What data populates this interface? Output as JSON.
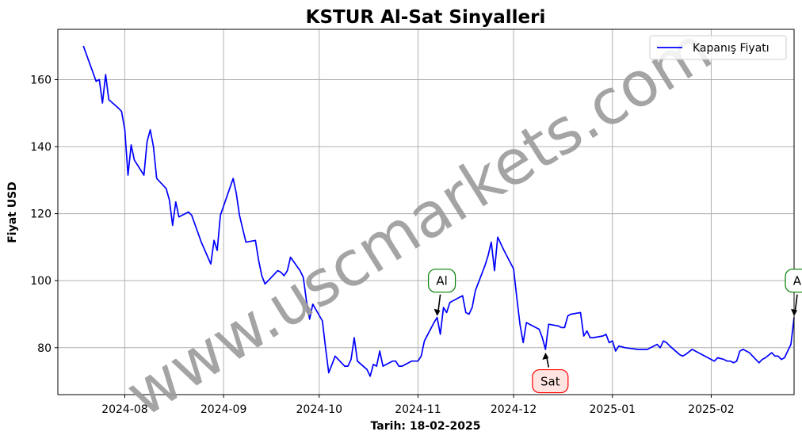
{
  "chart_data": {
    "type": "line",
    "title": "KSTUR Al-Sat Sinyalleri",
    "xlabel": "Tarih: 18-02-2025",
    "ylabel": "Fiyat USD",
    "xlim": [
      "2024-07-11",
      "2025-02-27"
    ],
    "ylim": [
      66,
      175
    ],
    "grid": true,
    "legend_position": "top-right",
    "x_ticks": [
      "2024-08",
      "2024-09",
      "2024-10",
      "2024-11",
      "2024-12",
      "2025-01",
      "2025-02"
    ],
    "y_ticks": [
      80,
      100,
      120,
      140,
      160
    ],
    "series": [
      {
        "name": "Kapanış Fiyatı",
        "color": "#0000ff",
        "points": [
          [
            "2024-07-19",
            170
          ],
          [
            "2024-07-23",
            159.5
          ],
          [
            "2024-07-24",
            160
          ],
          [
            "2024-07-25",
            153
          ],
          [
            "2024-07-26",
            161.5
          ],
          [
            "2024-07-27",
            154
          ],
          [
            "2024-07-30",
            151.5
          ],
          [
            "2024-07-31",
            150.5
          ],
          [
            "2024-08-01",
            145
          ],
          [
            "2024-08-02",
            131.5
          ],
          [
            "2024-08-03",
            140.5
          ],
          [
            "2024-08-04",
            136
          ],
          [
            "2024-08-07",
            131.5
          ],
          [
            "2024-08-08",
            141.5
          ],
          [
            "2024-08-09",
            145
          ],
          [
            "2024-08-10",
            140
          ],
          [
            "2024-08-11",
            130.5
          ],
          [
            "2024-08-14",
            127.5
          ],
          [
            "2024-08-15",
            124
          ],
          [
            "2024-08-16",
            116.5
          ],
          [
            "2024-08-17",
            123.5
          ],
          [
            "2024-08-18",
            119
          ],
          [
            "2024-08-21",
            120.5
          ],
          [
            "2024-08-22",
            119.5
          ],
          [
            "2024-08-25",
            111.5
          ],
          [
            "2024-08-28",
            105
          ],
          [
            "2024-08-29",
            112
          ],
          [
            "2024-08-30",
            109
          ],
          [
            "2024-08-31",
            119.5
          ],
          [
            "2024-09-04",
            130.5
          ],
          [
            "2024-09-05",
            126
          ],
          [
            "2024-09-06",
            119.5
          ],
          [
            "2024-09-08",
            111.5
          ],
          [
            "2024-09-11",
            112
          ],
          [
            "2024-09-12",
            106
          ],
          [
            "2024-09-13",
            101.5
          ],
          [
            "2024-09-14",
            99
          ],
          [
            "2024-09-18",
            103
          ],
          [
            "2024-09-19",
            102.5
          ],
          [
            "2024-09-20",
            101.5
          ],
          [
            "2024-09-21",
            103
          ],
          [
            "2024-09-22",
            107
          ],
          [
            "2024-09-25",
            103
          ],
          [
            "2024-09-26",
            101
          ],
          [
            "2024-09-27",
            94
          ],
          [
            "2024-09-28",
            88.5
          ],
          [
            "2024-09-29",
            93
          ],
          [
            "2024-10-02",
            88
          ],
          [
            "2024-10-03",
            80
          ],
          [
            "2024-10-04",
            72.5
          ],
          [
            "2024-10-05",
            75
          ],
          [
            "2024-10-06",
            77.5
          ],
          [
            "2024-10-09",
            74.5
          ],
          [
            "2024-10-10",
            74.5
          ],
          [
            "2024-10-11",
            76.5
          ],
          [
            "2024-10-12",
            83
          ],
          [
            "2024-10-13",
            76
          ],
          [
            "2024-10-16",
            73.5
          ],
          [
            "2024-10-17",
            71.5
          ],
          [
            "2024-10-18",
            75
          ],
          [
            "2024-10-19",
            74.5
          ],
          [
            "2024-10-20",
            79
          ],
          [
            "2024-10-21",
            74.5
          ],
          [
            "2024-10-24",
            76
          ],
          [
            "2024-10-25",
            76
          ],
          [
            "2024-10-26",
            74.5
          ],
          [
            "2024-10-27",
            74.5
          ],
          [
            "2024-10-30",
            76
          ],
          [
            "2024-10-31",
            76
          ],
          [
            "2024-11-01",
            76
          ],
          [
            "2024-11-02",
            77.5
          ],
          [
            "2024-11-03",
            82
          ],
          [
            "2024-11-06",
            87.5
          ],
          [
            "2024-11-07",
            89
          ],
          [
            "2024-11-08",
            84
          ],
          [
            "2024-11-09",
            92
          ],
          [
            "2024-11-10",
            90.5
          ],
          [
            "2024-11-11",
            93.5
          ],
          [
            "2024-11-14",
            95
          ],
          [
            "2024-11-15",
            95.5
          ],
          [
            "2024-11-16",
            90.5
          ],
          [
            "2024-11-17",
            90
          ],
          [
            "2024-11-18",
            92
          ],
          [
            "2024-11-19",
            97
          ],
          [
            "2024-11-22",
            104.5
          ],
          [
            "2024-11-23",
            107.5
          ],
          [
            "2024-11-24",
            111.5
          ],
          [
            "2024-11-25",
            103
          ],
          [
            "2024-11-26",
            113
          ],
          [
            "2024-11-27",
            111
          ],
          [
            "2024-11-28",
            109
          ],
          [
            "2024-12-01",
            103.5
          ],
          [
            "2024-12-02",
            95
          ],
          [
            "2024-12-03",
            87
          ],
          [
            "2024-12-04",
            81.5
          ],
          [
            "2024-12-05",
            87.5
          ],
          [
            "2024-12-08",
            86
          ],
          [
            "2024-12-09",
            85.5
          ],
          [
            "2024-12-10",
            83
          ],
          [
            "2024-12-11",
            79.5
          ],
          [
            "2024-12-12",
            87
          ],
          [
            "2024-12-15",
            86.5
          ],
          [
            "2024-12-16",
            86
          ],
          [
            "2024-12-17",
            86
          ],
          [
            "2024-12-18",
            89.5
          ],
          [
            "2024-12-19",
            90
          ],
          [
            "2024-12-22",
            90.5
          ],
          [
            "2024-12-23",
            83.5
          ],
          [
            "2024-12-24",
            85
          ],
          [
            "2024-12-25",
            83
          ],
          [
            "2024-12-26",
            83
          ],
          [
            "2024-12-29",
            83.5
          ],
          [
            "2024-12-30",
            84
          ],
          [
            "2024-12-31",
            81.5
          ],
          [
            "2025-01-01",
            82
          ],
          [
            "2025-01-02",
            79
          ],
          [
            "2025-01-03",
            80.5
          ],
          [
            "2025-01-05",
            80
          ],
          [
            "2025-01-09",
            79.5
          ],
          [
            "2025-01-12",
            79.5
          ],
          [
            "2025-01-13",
            80
          ],
          [
            "2025-01-15",
            81
          ],
          [
            "2025-01-16",
            80
          ],
          [
            "2025-01-17",
            82
          ],
          [
            "2025-01-18",
            81.5
          ],
          [
            "2025-01-19",
            80.5
          ],
          [
            "2025-01-22",
            78
          ],
          [
            "2025-01-23",
            77.5
          ],
          [
            "2025-01-24",
            78
          ],
          [
            "2025-01-26",
            79.5
          ],
          [
            "2025-01-27",
            79
          ],
          [
            "2025-01-30",
            77.5
          ],
          [
            "2025-01-31",
            77
          ],
          [
            "2025-02-01",
            76.5
          ],
          [
            "2025-02-02",
            76
          ],
          [
            "2025-02-03",
            77
          ],
          [
            "2025-02-05",
            76.5
          ],
          [
            "2025-02-06",
            76
          ],
          [
            "2025-02-07",
            76
          ],
          [
            "2025-02-08",
            75.5
          ],
          [
            "2025-02-09",
            76
          ],
          [
            "2025-02-10",
            79
          ],
          [
            "2025-02-11",
            79.5
          ],
          [
            "2025-02-12",
            79
          ],
          [
            "2025-02-13",
            78.5
          ],
          [
            "2025-02-14",
            77.5
          ],
          [
            "2025-02-16",
            75.5
          ],
          [
            "2025-02-17",
            76.5
          ],
          [
            "2025-02-18",
            77
          ],
          [
            "2025-02-20",
            78.5
          ],
          [
            "2025-02-21",
            77.5
          ],
          [
            "2025-02-22",
            77.5
          ],
          [
            "2025-02-23",
            76.5
          ],
          [
            "2025-02-24",
            77
          ],
          [
            "2025-02-26",
            81
          ],
          [
            "2025-02-27",
            89
          ]
        ]
      }
    ],
    "annotations": [
      {
        "text": "Al",
        "kind": "buy",
        "x": "2024-11-07",
        "y": 89,
        "text_y": 100,
        "edge": "#008000",
        "face": "#ffffff"
      },
      {
        "text": "Sat",
        "kind": "sell",
        "x": "2024-12-11",
        "y": 79,
        "text_y": 70,
        "edge": "#ff0000",
        "face": "#ffe4e1"
      },
      {
        "text": "Al",
        "kind": "buy",
        "x": "2025-02-27",
        "y": 89,
        "text_y": 100,
        "edge": "#008000",
        "face": "#ffffff"
      }
    ],
    "watermark": "www.uscmarkets.com"
  }
}
